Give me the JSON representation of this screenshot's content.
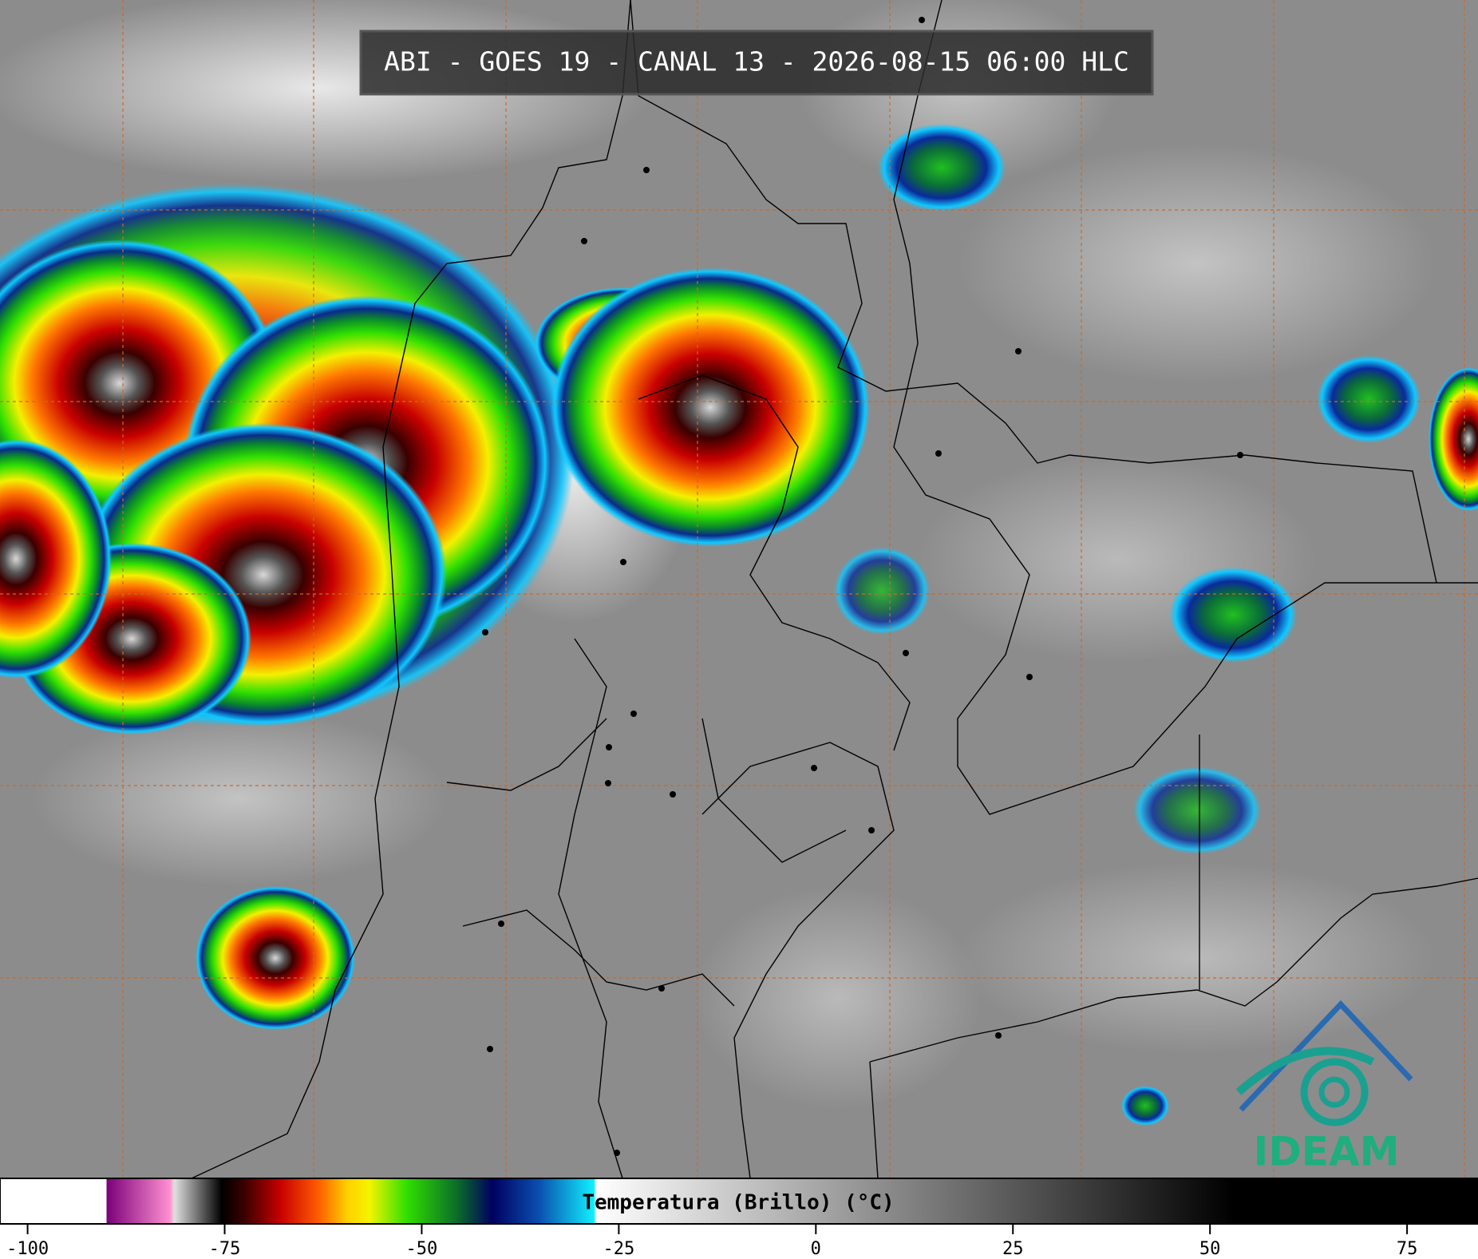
{
  "header": {
    "title": "ABI - GOES 19 - CANAL 13 - 2026-08-15 06:00 HLC"
  },
  "colorbar": {
    "label": "Temperatura (Brillo) (°C)",
    "lim": [
      -103.5,
      84
    ],
    "ticks": [
      -100,
      -75,
      -50,
      -25,
      0,
      25,
      50,
      75
    ]
  },
  "logo": {
    "text": "IDEAM"
  }
}
